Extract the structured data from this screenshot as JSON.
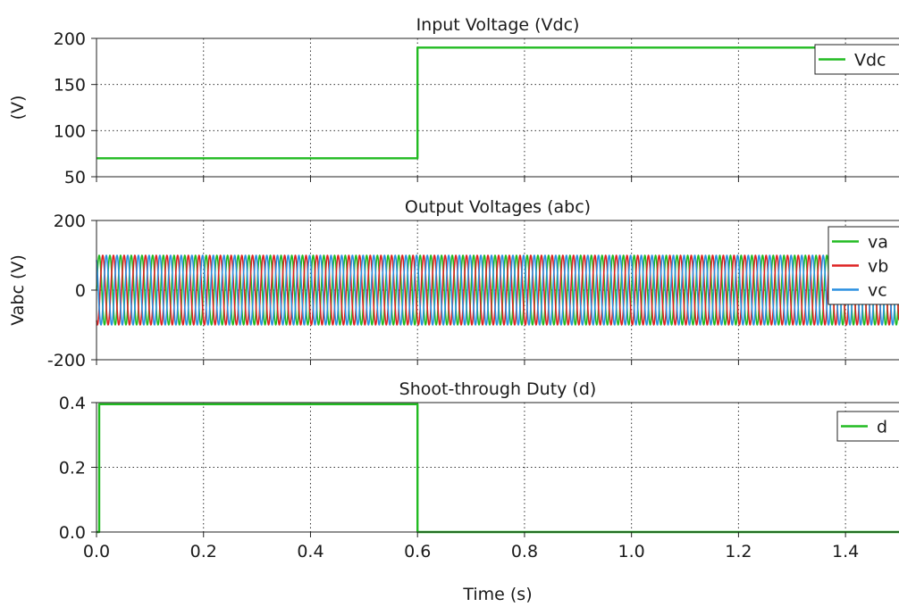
{
  "chart_data": [
    {
      "type": "line",
      "title": "Input Voltage (Vdc)",
      "ylabel": "(V)",
      "xlabel": "",
      "xlim": [
        0,
        1.5
      ],
      "ylim": [
        50,
        200
      ],
      "xticks": [
        0.0,
        0.2,
        0.4,
        0.6,
        0.8,
        1.0,
        1.2,
        1.4
      ],
      "xtick_labels": [
        "0.0",
        "0.2",
        "0.4",
        "0.6",
        "0.8",
        "1.0",
        "1.2",
        "1.4"
      ],
      "yticks": [
        50,
        100,
        150,
        200
      ],
      "ytick_labels": [
        "50",
        "100",
        "150",
        "200"
      ],
      "show_xtick_labels": false,
      "grid": true,
      "legend": "top-right",
      "series": [
        {
          "name": "Vdc",
          "color": "#22bb22",
          "kind": "step",
          "x": [
            0,
            0.6,
            0.6,
            1.5
          ],
          "y": [
            70,
            70,
            190,
            190
          ]
        }
      ]
    },
    {
      "type": "line",
      "title": "Output Voltages (abc)",
      "ylabel": "Vabc (V)",
      "xlabel": "",
      "xlim": [
        0,
        1.5
      ],
      "ylim": [
        -200,
        200
      ],
      "xticks": [
        0.0,
        0.2,
        0.4,
        0.6,
        0.8,
        1.0,
        1.2,
        1.4
      ],
      "xtick_labels": [
        "0.0",
        "0.2",
        "0.4",
        "0.6",
        "0.8",
        "1.0",
        "1.2",
        "1.4"
      ],
      "yticks": [
        -200,
        0,
        200
      ],
      "ytick_labels": [
        "-200",
        "0",
        "200"
      ],
      "show_xtick_labels": false,
      "grid": true,
      "legend": "top-right",
      "series": [
        {
          "name": "va",
          "color": "#22bb22",
          "kind": "sine",
          "amplitude": 100,
          "frequency_hz": 50,
          "phase_deg": 0
        },
        {
          "name": "vb",
          "color": "#dd2222",
          "kind": "sine",
          "amplitude": 100,
          "frequency_hz": 50,
          "phase_deg": -120
        },
        {
          "name": "vc",
          "color": "#2a8fe0",
          "kind": "sine",
          "amplitude": 100,
          "frequency_hz": 50,
          "phase_deg": 120
        }
      ]
    },
    {
      "type": "line",
      "title": "Shoot-through Duty (d)",
      "ylabel": "",
      "xlabel": "Time (s)",
      "xlim": [
        0,
        1.5
      ],
      "ylim": [
        0,
        0.4
      ],
      "xticks": [
        0.0,
        0.2,
        0.4,
        0.6,
        0.8,
        1.0,
        1.2,
        1.4
      ],
      "xtick_labels": [
        "0.0",
        "0.2",
        "0.4",
        "0.6",
        "0.8",
        "1.0",
        "1.2",
        "1.4"
      ],
      "yticks": [
        0.0,
        0.2,
        0.4
      ],
      "ytick_labels": [
        "0.0",
        "0.2",
        "0.4"
      ],
      "show_xtick_labels": true,
      "grid": true,
      "legend": "top-right",
      "series": [
        {
          "name": "d",
          "color": "#22bb22",
          "kind": "step",
          "x": [
            0,
            0.005,
            0.005,
            0.6,
            0.6,
            1.5
          ],
          "y": [
            0,
            0,
            0.395,
            0.395,
            0,
            0
          ]
        }
      ]
    }
  ]
}
